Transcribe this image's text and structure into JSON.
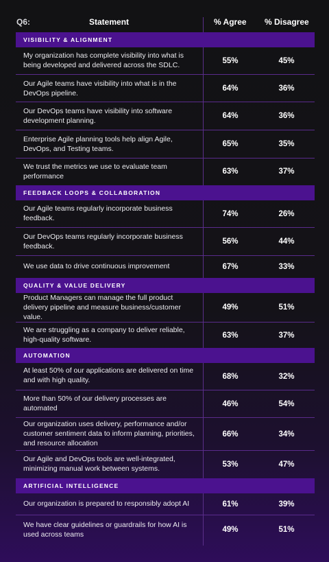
{
  "header": {
    "question": "Q6:",
    "statement": "Statement",
    "agree": "% Agree",
    "disagree": "% Disagree"
  },
  "sections": [
    {
      "title": "VISIBILITY & ALIGNMENT",
      "rows": [
        {
          "text": "My organization has complete visibility into what is being developed and delivered across the SDLC.",
          "agree": "55%",
          "disagree": "45%"
        },
        {
          "text": "Our Agile teams have visibility into what is in the DevOps pipeline.",
          "agree": "64%",
          "disagree": "36%"
        },
        {
          "text": "Our DevOps teams have visibility into software development planning.",
          "agree": "64%",
          "disagree": "36%"
        },
        {
          "text": "Enterprise Agile planning tools help align Agile, DevOps, and Testing teams.",
          "agree": "65%",
          "disagree": "35%"
        },
        {
          "text": "We trust the metrics we use to evaluate team performance",
          "agree": "63%",
          "disagree": "37%"
        }
      ]
    },
    {
      "title": "FEEDBACK LOOPS & COLLABORATION",
      "rows": [
        {
          "text": "Our Agile teams regularly incorporate business feedback.",
          "agree": "74%",
          "disagree": "26%"
        },
        {
          "text": "Our DevOps teams regularly incorporate business feedback.",
          "agree": "56%",
          "disagree": "44%"
        },
        {
          "text": "We use data to drive continuous improvement",
          "agree": "67%",
          "disagree": "33%"
        }
      ]
    },
    {
      "title": "QUALITY & VALUE DELIVERY",
      "rows": [
        {
          "text": "Product Managers can manage the full product delivery pipeline and measure business/customer value.",
          "agree": "49%",
          "disagree": "51%"
        },
        {
          "text": "We are struggling as a company to deliver reliable, high-quality software.",
          "agree": "63%",
          "disagree": "37%"
        }
      ]
    },
    {
      "title": "AUTOMATION",
      "rows": [
        {
          "text": "At least 50% of our applications are delivered on time and with high quality.",
          "agree": "68%",
          "disagree": "32%"
        },
        {
          "text": "More than 50% of our delivery processes are automated",
          "agree": "46%",
          "disagree": "54%"
        },
        {
          "text": "Our organization uses delivery, performance and/or customer sentiment data to inform planning, priorities, and resource allocation",
          "agree": "66%",
          "disagree": "34%"
        },
        {
          "text": "Our Agile and DevOps tools are well-integrated, minimizing manual work between systems.",
          "agree": "53%",
          "disagree": "47%"
        }
      ]
    },
    {
      "title": "ARTIFICIAL INTELLIGENCE",
      "rows": [
        {
          "text": "Our organization is prepared to responsibly adopt AI",
          "agree": "61%",
          "disagree": "39%"
        },
        {
          "text": "We have clear guidelines or guardrails for how AI is used across teams",
          "agree": "49%",
          "disagree": "51%"
        }
      ]
    }
  ]
}
